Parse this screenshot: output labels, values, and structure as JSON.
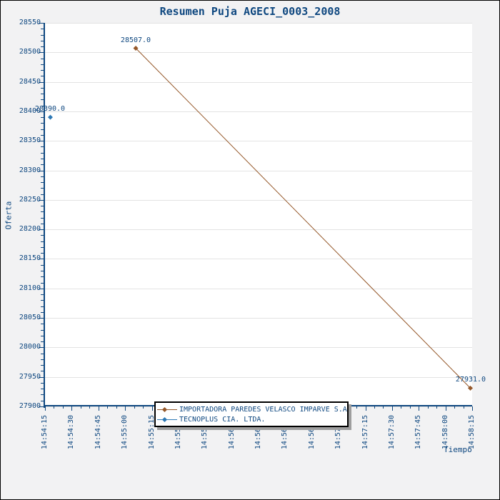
{
  "colors": {
    "text": "#0f4880",
    "axis": "#0f4880",
    "gridline": "#e3e3e3",
    "background": "#f2f2f3",
    "plot_background": "#ffffff",
    "legend_border": "#000000",
    "legend_shadow": "#9e9e9e"
  },
  "chart_data": {
    "type": "line",
    "title": "Resumen Puja AGECI_0003_2008",
    "xlabel": "Tiempo",
    "ylabel": "Oferta",
    "ylim": [
      27900,
      28550
    ],
    "y_major_step": 50,
    "y_minor_step": 10,
    "xlim": [
      "14:54:15",
      "14:58:15"
    ],
    "x_major_step_s": 15,
    "x_minor_step_s": 5,
    "grid": "horizontal-only",
    "legend_position": "bottom-center",
    "y_tick_labels": [
      "27900",
      "27950",
      "28000",
      "28050",
      "28100",
      "28150",
      "28200",
      "28250",
      "28300",
      "28350",
      "28400",
      "28450",
      "28500",
      "28550"
    ],
    "x_tick_labels": [
      "14:54:15",
      "14:54:30",
      "14:54:45",
      "14:55:00",
      "14:55:15",
      "14:55:30",
      "14:55:45",
      "14:56:00",
      "14:56:15",
      "14:56:30",
      "14:56:45",
      "14:57:00",
      "14:57:15",
      "14:57:30",
      "14:57:45",
      "14:58:00",
      "14:58:15"
    ],
    "series": [
      {
        "name": "IMPORTADORA PAREDES VELASCO IMPARVE S.A",
        "color": "#95582a",
        "marker": "diamond",
        "points": [
          {
            "x": "14:55:06",
            "y": 28507.0,
            "label": "28507.0"
          },
          {
            "x": "14:58:14",
            "y": 27931.0,
            "label": "27931.0"
          }
        ]
      },
      {
        "name": "TECNOPLUS CIA. LTDA.",
        "color": "#2e79b5",
        "marker": "diamond",
        "points": [
          {
            "x": "14:54:18",
            "y": 28390.0,
            "label": "28390.0"
          }
        ]
      }
    ]
  }
}
